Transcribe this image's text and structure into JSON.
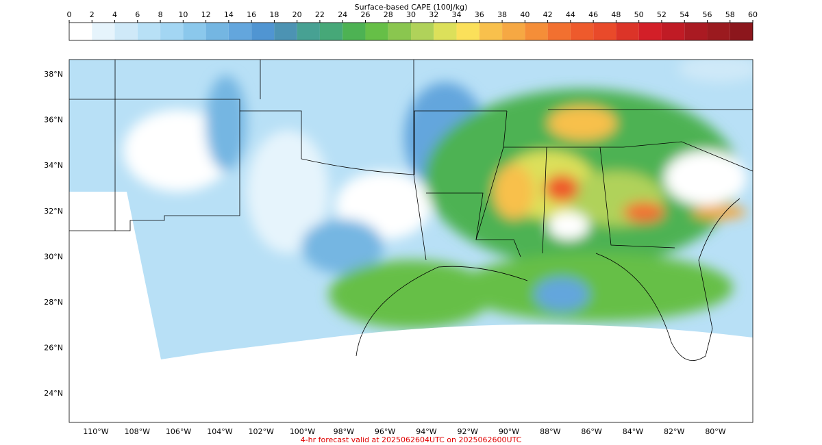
{
  "colorbar": {
    "title": "Surface-based CAPE (100J/kg)",
    "ticks": [
      0,
      2,
      4,
      6,
      8,
      10,
      12,
      14,
      16,
      18,
      20,
      22,
      24,
      26,
      28,
      30,
      32,
      34,
      36,
      38,
      40,
      42,
      44,
      46,
      48,
      50,
      52,
      54,
      56,
      58,
      60
    ],
    "colors": [
      "#ffffff",
      "#e6f4fc",
      "#cfe9f8",
      "#b8e0f6",
      "#a3d6f3",
      "#8bc8ec",
      "#74b6e2",
      "#63a6dd",
      "#5095d2",
      "#4c93b3",
      "#47a193",
      "#46a878",
      "#4db253",
      "#66bf47",
      "#8ac64f",
      "#b0d25a",
      "#dce05a",
      "#fbe05a",
      "#f8c04c",
      "#f6a843",
      "#f58e38",
      "#f27030",
      "#ee5a2c",
      "#e94a2a",
      "#dc3428",
      "#d31f28",
      "#c01b25",
      "#aa1a22",
      "#9b1a1f",
      "#8c161c"
    ]
  },
  "map": {
    "lat_labels": [
      "38°N",
      "36°N",
      "34°N",
      "32°N",
      "30°N",
      "28°N",
      "26°N",
      "24°N"
    ],
    "lon_labels": [
      "110°W",
      "108°W",
      "106°W",
      "104°W",
      "102°W",
      "100°W",
      "98°W",
      "96°W",
      "94°W",
      "92°W",
      "90°W",
      "88°W",
      "86°W",
      "84°W",
      "82°W",
      "80°W"
    ]
  },
  "footer": "4-hr forecast valid at 2025062604UTC on 2025062600UTC"
}
